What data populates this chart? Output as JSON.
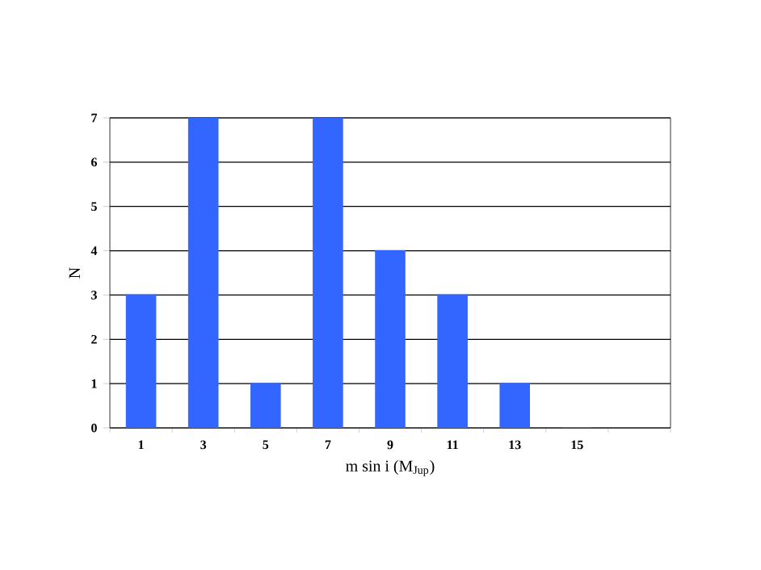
{
  "chart_data": {
    "type": "bar",
    "xlabel": "m sin i (M$_{Jup}$)",
    "ylabel": "N",
    "categories": [
      "1",
      "3",
      "5",
      "7",
      "9",
      "11",
      "13",
      "15",
      null
    ],
    "values": [
      3,
      7,
      1,
      7,
      4,
      3,
      1,
      0,
      null
    ],
    "color": "#3366ff",
    "ylim": [
      0,
      7
    ],
    "yticks": [
      0,
      1,
      2,
      3,
      4,
      5,
      6,
      7
    ],
    "grid": "y"
  }
}
